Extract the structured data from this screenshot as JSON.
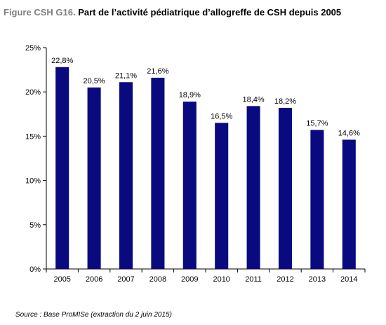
{
  "figure": {
    "label": "Figure CSH G16.",
    "title": "Part de l’activité pédiatrique d’allogreffe de CSH depuis 2005"
  },
  "source": "Source : Base ProMISe (extraction du 2 juin 2015)",
  "colors": {
    "bar": "#0a0a80",
    "axis": "#000000"
  },
  "chart_data": {
    "type": "bar",
    "categories": [
      "2005",
      "2006",
      "2007",
      "2008",
      "2009",
      "2010",
      "2011",
      "2012",
      "2013",
      "2014"
    ],
    "values": [
      22.8,
      20.5,
      21.1,
      21.6,
      18.9,
      16.5,
      18.4,
      18.2,
      15.7,
      14.6
    ],
    "data_labels": [
      "22,8%",
      "20,5%",
      "21,1%",
      "21,6%",
      "18,9%",
      "16,5%",
      "18,4%",
      "18,2%",
      "15,7%",
      "14,6%"
    ],
    "ylim": [
      0,
      25
    ],
    "yticks": [
      0,
      5,
      10,
      15,
      20,
      25
    ],
    "ytick_labels": [
      "0%",
      "5%",
      "10%",
      "15%",
      "20%",
      "25%"
    ],
    "grid": false,
    "legend": "none"
  }
}
